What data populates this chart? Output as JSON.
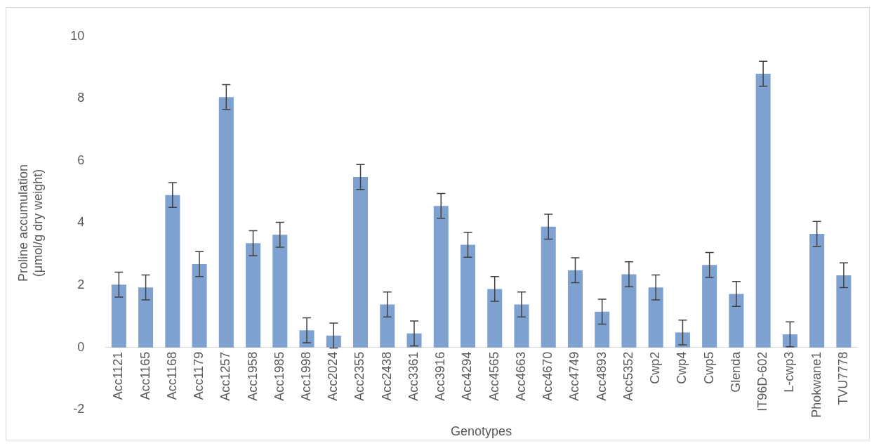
{
  "chart_data": {
    "type": "bar",
    "xlabel": "Genotypes",
    "ylabel": "Proline accumulation (μmol/g dry weight)",
    "categories": [
      "Acc1121",
      "Acc1165",
      "Acc1168",
      "Acc1179",
      "Acc1257",
      "Acc1958",
      "Acc1985",
      "Acc1998",
      "Acc2024",
      "Acc2355",
      "Acc2438",
      "Acc3361",
      "Acc3916",
      "Acc4294",
      "Acc4565",
      "Acc4663",
      "Acc4670",
      "Acc4749",
      "Acc4893",
      "Acc5352",
      "Cwp2",
      "Cwp4",
      "Cwp5",
      "Glenda",
      "IT96D-602",
      "L-cwp3",
      "Phokwane1",
      "TVU7778"
    ],
    "values": [
      2.02,
      1.93,
      4.9,
      2.68,
      8.05,
      3.35,
      3.62,
      0.55,
      0.38,
      5.48,
      1.38,
      0.45,
      4.55,
      3.3,
      1.88,
      1.38,
      3.88,
      2.48,
      1.15,
      2.35,
      1.93,
      0.48,
      2.65,
      1.72,
      8.8,
      0.42,
      3.65,
      2.32
    ],
    "errors": [
      0.4,
      0.4,
      0.4,
      0.4,
      0.4,
      0.4,
      0.4,
      0.4,
      0.4,
      0.4,
      0.4,
      0.4,
      0.4,
      0.4,
      0.4,
      0.4,
      0.4,
      0.4,
      0.4,
      0.4,
      0.4,
      0.4,
      0.4,
      0.4,
      0.4,
      0.4,
      0.4,
      0.4
    ],
    "color": "#7ea1cf",
    "ylim": [
      -2,
      10
    ],
    "yticks": [
      -2,
      0,
      2,
      4,
      6,
      8,
      10
    ],
    "grid": false,
    "legend": false
  }
}
